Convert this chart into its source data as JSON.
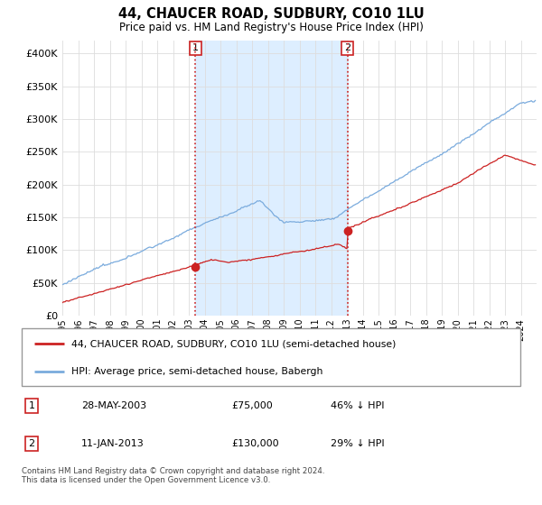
{
  "title": "44, CHAUCER ROAD, SUDBURY, CO10 1LU",
  "subtitle": "Price paid vs. HM Land Registry's House Price Index (HPI)",
  "hpi_color": "#7aabdd",
  "price_color": "#cc2222",
  "vline_color": "#cc2222",
  "shade_color": "#ddeeff",
  "ylim": [
    0,
    420000
  ],
  "yticks": [
    0,
    50000,
    100000,
    150000,
    200000,
    250000,
    300000,
    350000,
    400000
  ],
  "xlim_start": 1995,
  "xlim_end": 2025,
  "transaction1_year": 2003.42,
  "transaction1_price": 75000,
  "transaction1_date": "28-MAY-2003",
  "transaction1_pct": "46% ↓ HPI",
  "transaction2_year": 2013.04,
  "transaction2_price": 130000,
  "transaction2_date": "11-JAN-2013",
  "transaction2_pct": "29% ↓ HPI",
  "legend_property": "44, CHAUCER ROAD, SUDBURY, CO10 1LU (semi-detached house)",
  "legend_hpi": "HPI: Average price, semi-detached house, Babergh",
  "footnote": "Contains HM Land Registry data © Crown copyright and database right 2024.\nThis data is licensed under the Open Government Licence v3.0.",
  "grid_color": "#dddddd"
}
